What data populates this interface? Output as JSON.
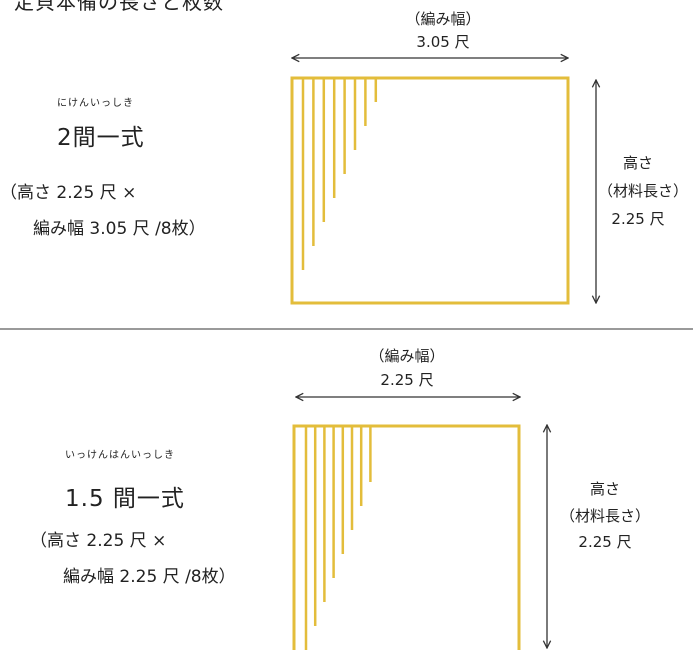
{
  "page_title": "定貝本備の長さと枚数",
  "colors": {
    "gold": "#e3bd3b",
    "divider": "#9a9a9a",
    "arrow": "#333333"
  },
  "section1": {
    "ruby": "にけんいっしき",
    "name": "2間一式",
    "spec_line1": "（高さ 2.25 尺 ×",
    "spec_line2": "編み幅 3.05 尺 /8枚）",
    "width_label": "（編み幅）",
    "width_value": "3.05 尺",
    "height_label": "高さ",
    "height_sub": "（材料長さ）",
    "height_value": "2.25 尺",
    "strand_count": 8
  },
  "section2": {
    "ruby": "いっけんはんいっしき",
    "name": "1.5 間一式",
    "spec_line1": "（高さ 2.25 尺 ×",
    "spec_line2": "編み幅 2.25 尺 /8枚）",
    "width_label": "（編み幅）",
    "width_value": "2.25 尺",
    "height_label": "高さ",
    "height_sub": "（材料長さ）",
    "height_value": "2.25 尺",
    "strand_count": 8
  }
}
